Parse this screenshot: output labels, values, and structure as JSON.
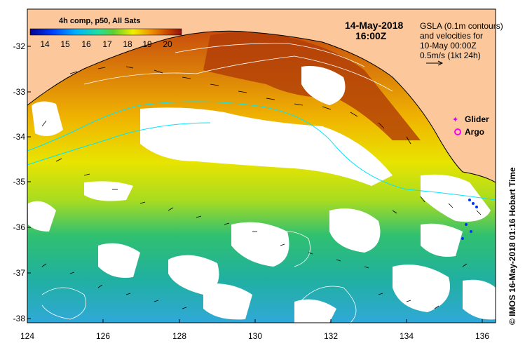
{
  "title_line": "4h comp, p50, All Sats",
  "colorbar": {
    "ticks": [
      "14",
      "15",
      "16",
      "17",
      "18",
      "19",
      "20"
    ]
  },
  "date": "14-May-2018",
  "time": "16:00Z",
  "notes": [
    "GSLA (0.1m contours)",
    "and velocities for",
    "10-May 00:00Z",
    "0.5m/s (1kt 24h)"
  ],
  "legend": {
    "glider": "Glider",
    "argo": "Argo"
  },
  "credit": "© IMOS 16-May-2018 01:16 Hobart Time",
  "axes": {
    "y_ticks": [
      "-32",
      "-33",
      "-34",
      "-35",
      "-36",
      "-37",
      "-38"
    ],
    "x_ticks": [
      "124",
      "126",
      "128",
      "130",
      "132",
      "134",
      "136"
    ]
  },
  "colors": {
    "land": "#fcc79a",
    "current_line": "#00e5ff",
    "contour": "#ffffff"
  }
}
